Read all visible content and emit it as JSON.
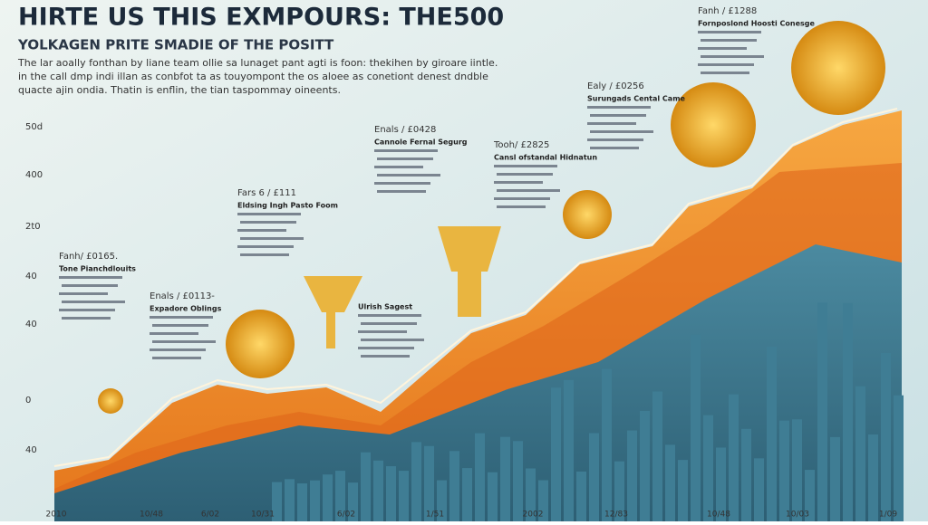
{
  "header": {
    "title": "HIRTE US THIS EXMPOURS: THE500",
    "subtitle": "YOLKAGEN PRITE SMADIE OF THE POSITT",
    "intro": [
      "The lar aoally fonthan by liane team ollie sa lunaget pant agti is foon: thekihen by giroare iintle.",
      "in the call dmp indi illan as conbfot ta as touyompont the os aloee as conetiont denest dndble",
      "quacte ajin ondia. Thatin is enflin, the tian taspommay oineents."
    ]
  },
  "axis": {
    "y_labels": [
      "50d",
      "400",
      "2t0",
      "40",
      "40",
      "0",
      "40"
    ],
    "x_labels": [
      "2010",
      "10/48",
      "6/02",
      "10/31",
      "6/02",
      "1/51",
      "2002",
      "12/83",
      "10/48",
      "10/03",
      "1/09"
    ]
  },
  "annotations": [
    {
      "date": "Fanh/ £0165.",
      "heading": "Tone Pianchdlouits"
    },
    {
      "date": "Enals / £0113-",
      "heading": "Expadore Oblings"
    },
    {
      "date": "Fars 6 / £111",
      "heading": "Eldsing Ingh Pasto Foom"
    },
    {
      "date": "Enals / £0428",
      "heading": "Cannole Fernal Segurg"
    },
    {
      "date": "Tooh/ £2825",
      "heading": "Cansl ofstandal Hidnatun"
    },
    {
      "date": "Ealy / £0256",
      "heading": "Surungads Cental Came"
    },
    {
      "date": "Fanh / £1288",
      "heading": "Fornposlond Hoosti Conesge"
    },
    {
      "date": "",
      "heading": "Ulrish Sagest"
    }
  ]
}
